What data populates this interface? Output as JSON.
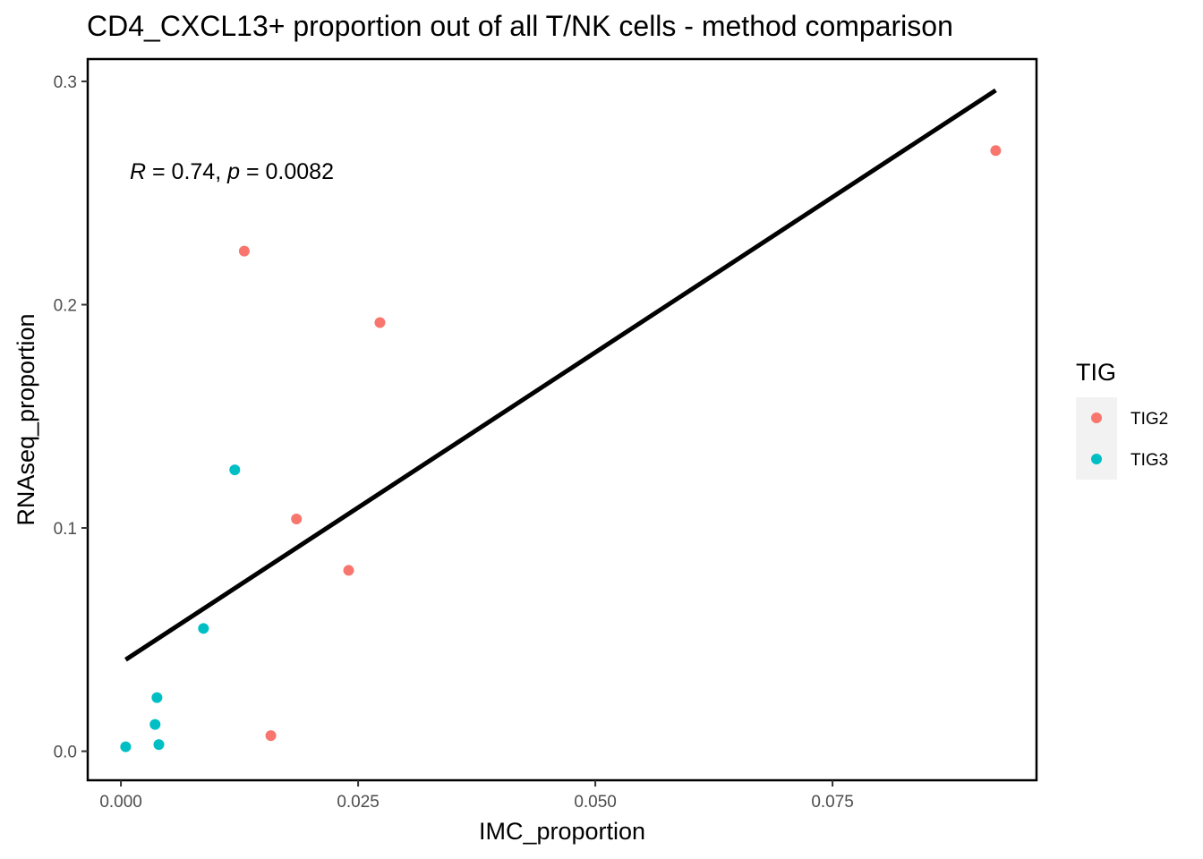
{
  "chart_data": {
    "type": "scatter",
    "title": "CD4_CXCL13+ proportion out of all T/NK cells - method comparison",
    "xlabel": "IMC_proportion",
    "ylabel": "RNAseq_proportion",
    "xlim": [
      -0.0035,
      0.0965
    ],
    "ylim": [
      -0.013,
      0.31
    ],
    "x_ticks": [
      0.0,
      0.025,
      0.05,
      0.075
    ],
    "x_tick_labels": [
      "0.000",
      "0.025",
      "0.050",
      "0.075"
    ],
    "y_ticks": [
      0.0,
      0.1,
      0.2,
      0.3
    ],
    "y_tick_labels": [
      "0.0",
      "0.1",
      "0.2",
      "0.3"
    ],
    "grid": false,
    "legend": {
      "title": "TIG",
      "placement": "right"
    },
    "series": [
      {
        "name": "TIG2",
        "color": "#F8766D",
        "points": [
          {
            "x": 0.0922,
            "y": 0.269
          },
          {
            "x": 0.013,
            "y": 0.224
          },
          {
            "x": 0.0273,
            "y": 0.192
          },
          {
            "x": 0.0185,
            "y": 0.104
          },
          {
            "x": 0.024,
            "y": 0.081
          },
          {
            "x": 0.0158,
            "y": 0.007
          }
        ]
      },
      {
        "name": "TIG3",
        "color": "#00BFC4",
        "points": [
          {
            "x": 0.012,
            "y": 0.126
          },
          {
            "x": 0.0087,
            "y": 0.055
          },
          {
            "x": 0.0038,
            "y": 0.024
          },
          {
            "x": 0.0036,
            "y": 0.012
          },
          {
            "x": 0.004,
            "y": 0.003
          },
          {
            "x": 0.0005,
            "y": 0.002
          }
        ]
      }
    ],
    "regression_line": {
      "x": [
        0.0005,
        0.0922
      ],
      "y": [
        0.041,
        0.296
      ],
      "color": "#000000"
    },
    "annotation": {
      "r_symbol": "R",
      "r_text": " = 0.74, ",
      "p_symbol": "p",
      "p_text": " = 0.0082"
    }
  }
}
